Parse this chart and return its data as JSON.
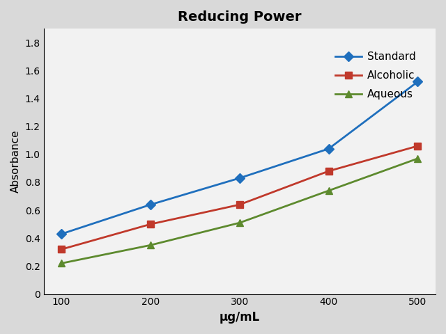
{
  "x": [
    100,
    200,
    300,
    400,
    500
  ],
  "standard": [
    0.43,
    0.64,
    0.83,
    1.04,
    1.52
  ],
  "alcoholic": [
    0.32,
    0.5,
    0.64,
    0.88,
    1.06
  ],
  "aqueous": [
    0.22,
    0.35,
    0.51,
    0.74,
    0.97
  ],
  "title": "Reducing Power",
  "xlabel": "μg/mL",
  "ylabel": "Absorbance",
  "ylim": [
    0,
    1.9
  ],
  "yticks": [
    0,
    0.2,
    0.4,
    0.6,
    0.8,
    1.0,
    1.2,
    1.4,
    1.6,
    1.8
  ],
  "standard_color": "#1f6fbd",
  "alcoholic_color": "#c0392b",
  "aqueous_color": "#5d8a2e",
  "legend_labels": [
    "Standard",
    "Alcoholic",
    "Aqueous"
  ],
  "bg_color": "#f2f2f2",
  "fig_bg_color": "#d9d9d9"
}
